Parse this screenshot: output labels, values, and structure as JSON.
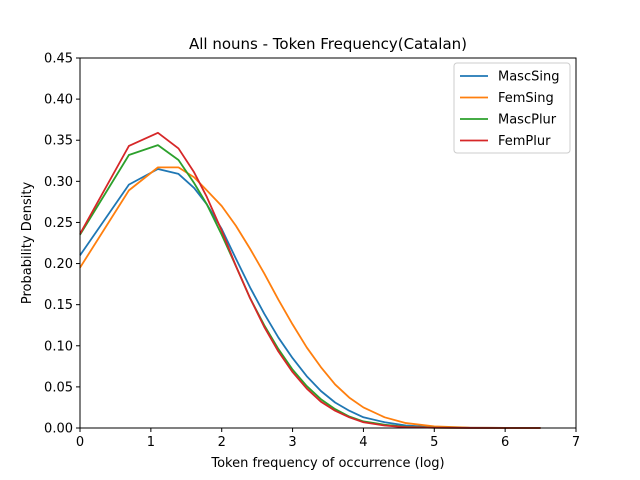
{
  "chart_data": {
    "type": "line",
    "title": "All nouns - Token Frequency(Catalan)",
    "xlabel": "Token frequency of occurrence (log)",
    "ylabel": "Probability Density",
    "xlim": [
      0,
      7
    ],
    "ylim": [
      0,
      0.45
    ],
    "xticks": [
      0,
      1,
      2,
      3,
      4,
      5,
      6,
      7
    ],
    "xtick_labels": [
      "0",
      "1",
      "2",
      "3",
      "4",
      "5",
      "6",
      "7"
    ],
    "yticks": [
      0,
      0.05,
      0.1,
      0.15,
      0.2,
      0.25,
      0.3,
      0.35,
      0.4,
      0.45
    ],
    "ytick_labels": [
      "0.00",
      "0.05",
      "0.10",
      "0.15",
      "0.20",
      "0.25",
      "0.30",
      "0.35",
      "0.40",
      "0.45"
    ],
    "grid": false,
    "legend_position": "top-right",
    "series": [
      {
        "name": "MascSing",
        "color": "#1f77b4",
        "x": [
          0,
          0.69,
          1.1,
          1.39,
          1.61,
          1.79,
          2.0,
          2.2,
          2.4,
          2.6,
          2.8,
          3.0,
          3.2,
          3.4,
          3.6,
          3.8,
          4.0,
          4.3,
          4.6,
          5.0,
          5.5,
          6.0,
          6.5
        ],
        "y": [
          0.21,
          0.296,
          0.315,
          0.309,
          0.292,
          0.272,
          0.242,
          0.206,
          0.171,
          0.139,
          0.11,
          0.085,
          0.063,
          0.045,
          0.031,
          0.021,
          0.013,
          0.007,
          0.003,
          0.001,
          0.0003,
          0.0001,
          0
        ]
      },
      {
        "name": "FemSing",
        "color": "#ff7f0e",
        "x": [
          0,
          0.69,
          1.1,
          1.39,
          1.61,
          1.79,
          2.0,
          2.2,
          2.4,
          2.6,
          2.8,
          3.0,
          3.2,
          3.4,
          3.6,
          3.8,
          4.0,
          4.3,
          4.6,
          5.0,
          5.5,
          6.0,
          6.5
        ],
        "y": [
          0.195,
          0.289,
          0.317,
          0.317,
          0.305,
          0.289,
          0.27,
          0.246,
          0.218,
          0.188,
          0.156,
          0.126,
          0.098,
          0.074,
          0.053,
          0.037,
          0.025,
          0.013,
          0.006,
          0.002,
          0.0005,
          0.0001,
          0
        ]
      },
      {
        "name": "MascPlur",
        "color": "#2ca02c",
        "x": [
          0,
          0.69,
          1.1,
          1.39,
          1.61,
          1.79,
          2.0,
          2.2,
          2.4,
          2.6,
          2.8,
          3.0,
          3.2,
          3.4,
          3.6,
          3.8,
          4.0,
          4.3,
          4.6,
          5.0,
          5.5,
          6.0,
          6.5
        ],
        "y": [
          0.235,
          0.332,
          0.344,
          0.326,
          0.298,
          0.272,
          0.235,
          0.197,
          0.158,
          0.125,
          0.096,
          0.071,
          0.051,
          0.035,
          0.023,
          0.014,
          0.008,
          0.004,
          0.0015,
          0.0004,
          0.0001,
          0,
          0
        ]
      },
      {
        "name": "FemPlur",
        "color": "#d62728",
        "x": [
          0,
          0.69,
          1.1,
          1.39,
          1.61,
          1.79,
          2.0,
          2.2,
          2.4,
          2.6,
          2.8,
          3.0,
          3.2,
          3.4,
          3.6,
          3.8,
          4.0,
          4.3,
          4.6,
          5.0,
          5.5,
          6.0,
          6.5
        ],
        "y": [
          0.236,
          0.343,
          0.359,
          0.34,
          0.311,
          0.281,
          0.24,
          0.197,
          0.158,
          0.123,
          0.093,
          0.068,
          0.048,
          0.032,
          0.021,
          0.013,
          0.007,
          0.003,
          0.001,
          0.0003,
          0.0001,
          0,
          0
        ]
      }
    ]
  }
}
